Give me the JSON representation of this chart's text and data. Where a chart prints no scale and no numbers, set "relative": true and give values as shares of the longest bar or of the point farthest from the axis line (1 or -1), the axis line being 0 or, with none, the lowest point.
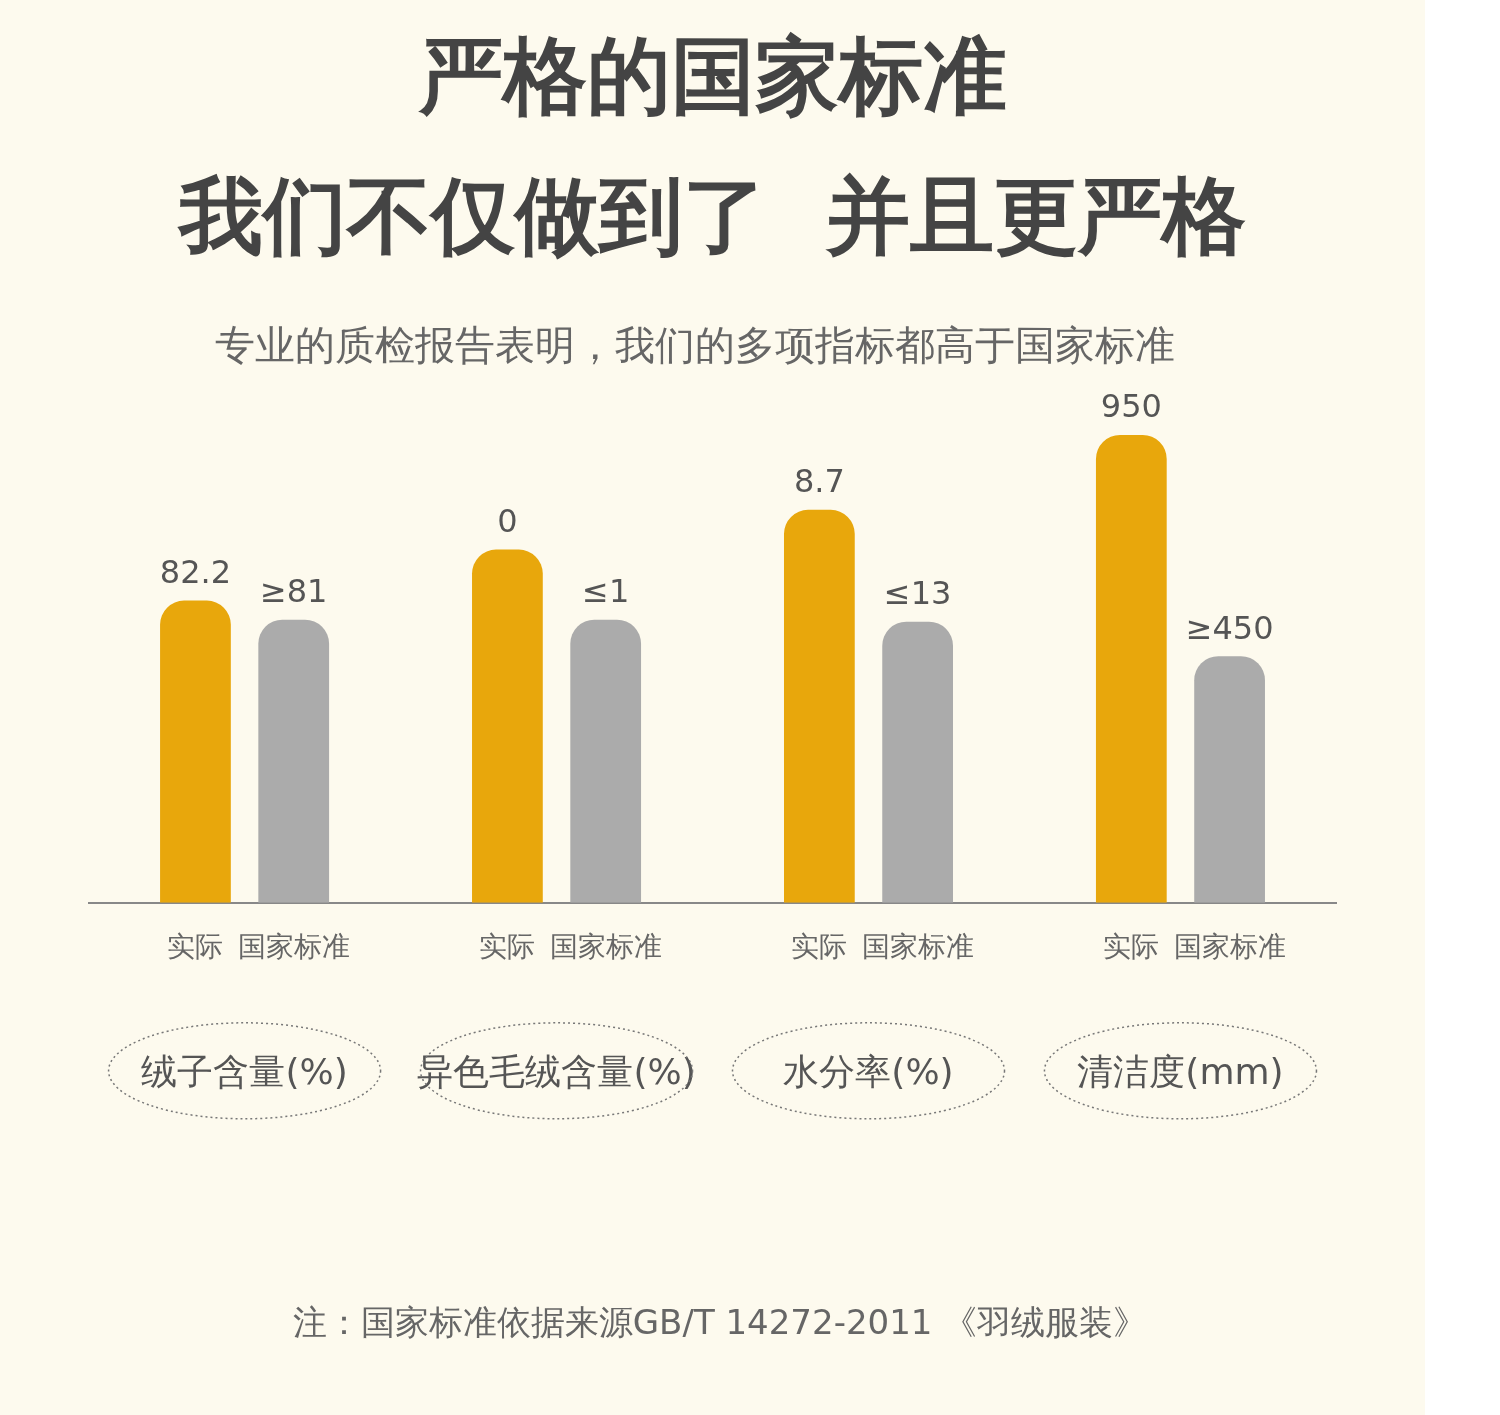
{
  "chart_data": {
    "type": "bar",
    "title": "严格的国家标准",
    "subtitle": "我们不仅做到了  并且更严格",
    "annotations": [
      "专业的质检报告表明，我们的多项指标都高于国家标准",
      "注：国家标准依据来源GB/T 14272-2011 《羽绒服装》",
      "82.2",
      "0",
      "8.7",
      "950",
      "≥81",
      "≤1",
      "≤13",
      "≥450"
    ],
    "categories": [
      "绒子含量(%)",
      "异色毛绒含量(%)",
      "水分率(%)",
      "清洁度(mm)"
    ],
    "relative": true,
    "series": [
      {
        "name": "实际",
        "color": "#e8a70c",
        "values": [
          0.646,
          0.755,
          0.84,
          1
        ]
      },
      {
        "name": "国家标准",
        "color": "#ababab",
        "values": [
          0.605,
          0.605,
          0.601,
          0.527
        ]
      }
    ],
    "legend": false,
    "grid": false
  }
}
